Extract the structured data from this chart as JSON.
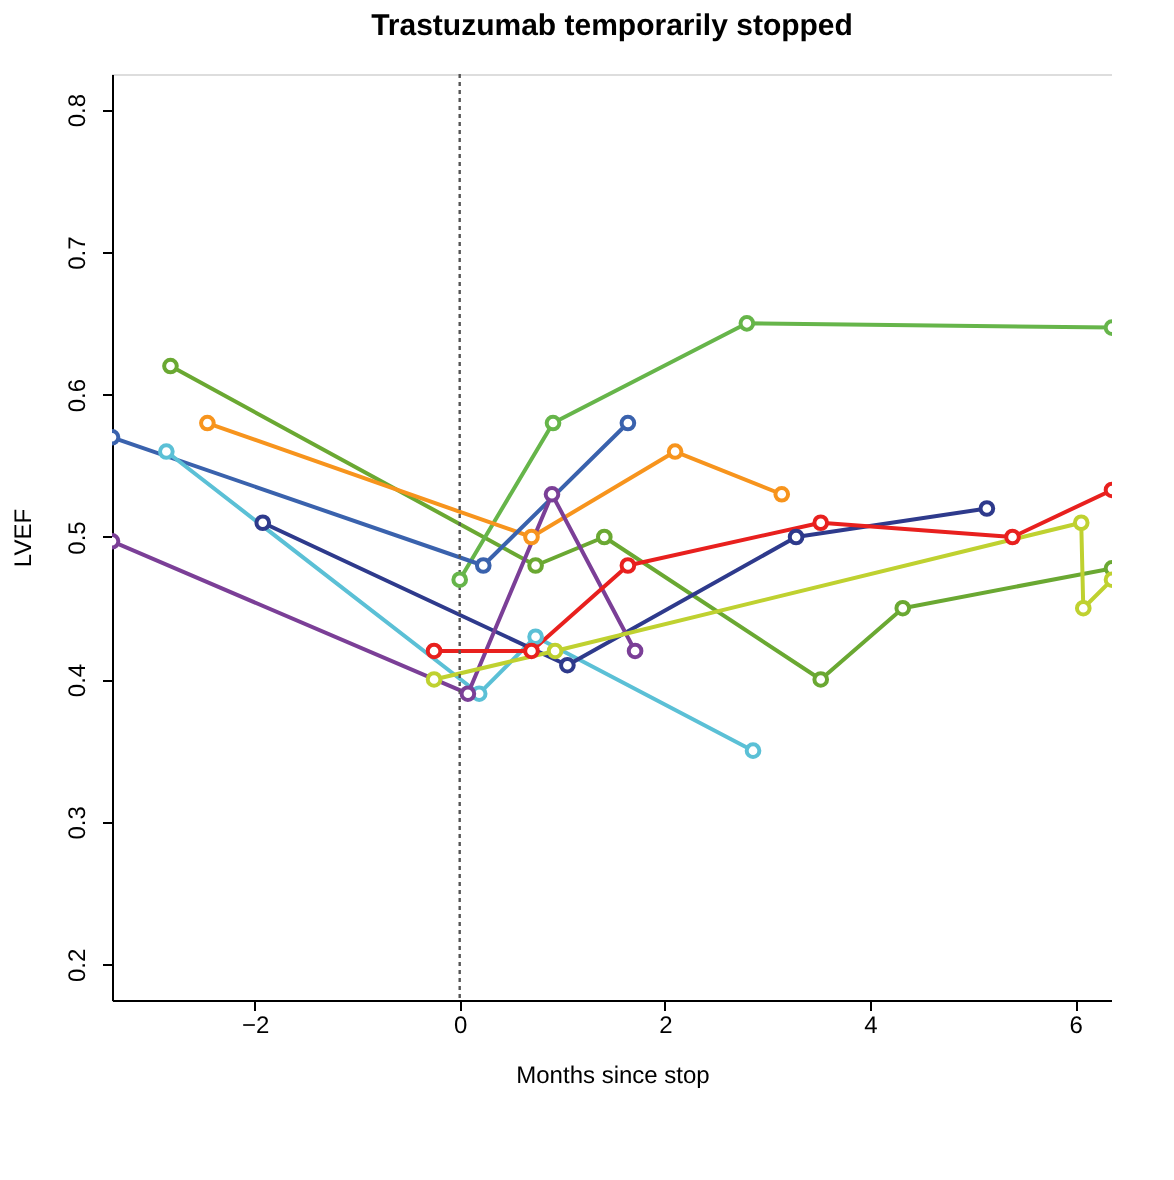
{
  "chart_data": {
    "type": "line",
    "title": "Trastuzumab temporarily stopped",
    "xlabel": "Months since stop",
    "ylabel": "LVEF",
    "xlim": [
      -3.39,
      6.36
    ],
    "ylim": [
      0.175,
      0.825
    ],
    "xticks": [
      -2,
      0,
      2,
      4,
      6
    ],
    "yticks": [
      0.2,
      0.3,
      0.4,
      0.5,
      0.6,
      0.7,
      0.8
    ],
    "grid": false,
    "marker": "circle",
    "line_style": "solid",
    "ref_lines": [
      {
        "axis": "x",
        "value": 0,
        "color": "#555555",
        "line_style": "dotted"
      }
    ],
    "series": [
      {
        "color": "#6aa832",
        "x": [
          -2.82,
          0.74,
          1.41,
          3.52,
          4.32,
          6.36
        ],
        "values": [
          0.62,
          0.48,
          0.5,
          0.4,
          0.45,
          0.478
        ]
      },
      {
        "color": "#66b54a",
        "x": [
          0,
          0.91,
          2.8,
          6.36
        ],
        "values": [
          0.47,
          0.58,
          0.65,
          0.647
        ]
      },
      {
        "color": "#f7941d",
        "x": [
          -2.46,
          0.7,
          2.1,
          3.14
        ],
        "values": [
          0.58,
          0.5,
          0.56,
          0.53
        ]
      },
      {
        "color": "#3a62ad",
        "x": [
          -3.39,
          0.23,
          1.64
        ],
        "values": [
          0.57,
          0.48,
          0.58
        ]
      },
      {
        "color": "#5bc0d6",
        "x": [
          -2.86,
          0.19,
          0.74,
          2.86
        ],
        "values": [
          0.56,
          0.39,
          0.43,
          0.35
        ]
      },
      {
        "color": "#2e3a8c",
        "x": [
          -1.92,
          1.05,
          3.28,
          5.14
        ],
        "values": [
          0.51,
          0.41,
          0.5,
          0.52
        ]
      },
      {
        "color": "#7b3f97",
        "x": [
          -3.39,
          0.08,
          0.9,
          1.71
        ],
        "values": [
          0.497,
          0.39,
          0.53,
          0.42
        ]
      },
      {
        "color": "#e8201e",
        "x": [
          -0.25,
          0.7,
          1.64,
          3.52,
          5.39,
          6.36
        ],
        "values": [
          0.42,
          0.42,
          0.48,
          0.51,
          0.5,
          0.533
        ]
      },
      {
        "color": "#bfd130",
        "x": [
          -0.25,
          0.93,
          6.06,
          6.08,
          6.36
        ],
        "values": [
          0.4,
          0.42,
          0.51,
          0.45,
          0.47
        ]
      }
    ]
  }
}
